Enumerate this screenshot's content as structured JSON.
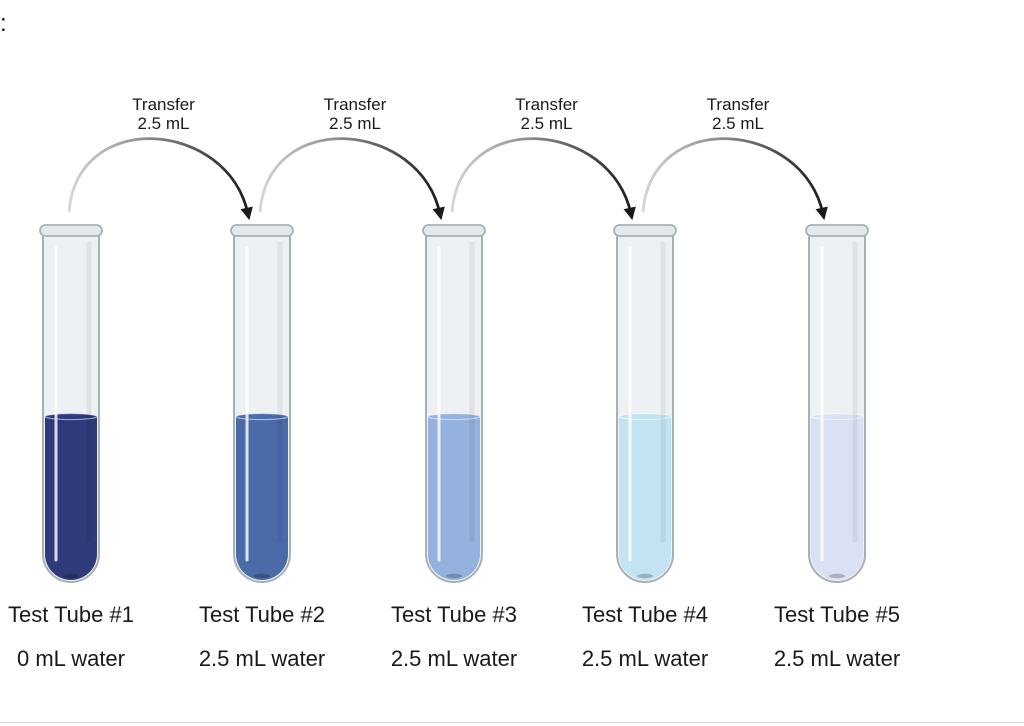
{
  "corner_mark": ":",
  "transfers": [
    {
      "line1": "Transfer",
      "line2": "2.5 mL"
    },
    {
      "line1": "Transfer",
      "line2": "2.5 mL"
    },
    {
      "line1": "Transfer",
      "line2": "2.5 mL"
    },
    {
      "line1": "Transfer",
      "line2": "2.5 mL"
    }
  ],
  "tubes": [
    {
      "name": "Test Tube #1",
      "water": "0 mL water",
      "color": "#2f3a7a",
      "fill_level": 0.47
    },
    {
      "name": "Test Tube #2",
      "water": "2.5 mL water",
      "color": "#4b6aa8",
      "fill_level": 0.47
    },
    {
      "name": "Test Tube #3",
      "water": "2.5 mL water",
      "color": "#94b2dd",
      "fill_level": 0.47
    },
    {
      "name": "Test Tube #4",
      "water": "2.5 mL water",
      "color": "#c3e3f2",
      "fill_level": 0.47
    },
    {
      "name": "Test Tube #5",
      "water": "2.5 mL water",
      "color": "#dbe1f4",
      "fill_level": 0.47
    }
  ]
}
